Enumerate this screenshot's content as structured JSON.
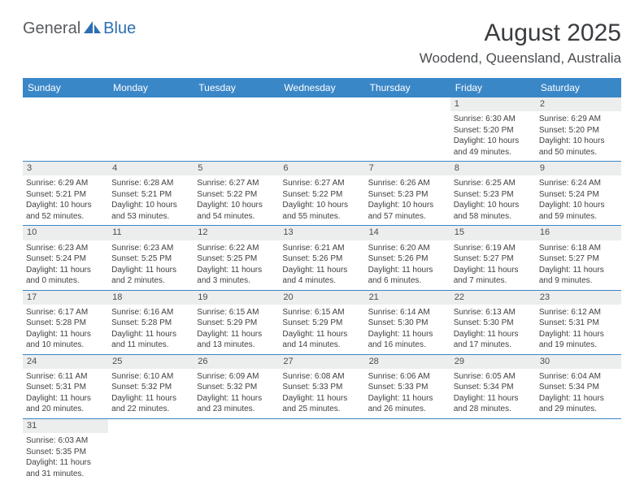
{
  "logo": {
    "general": "General",
    "blue": "Blue",
    "sail_color": "#2c6fb2"
  },
  "header": {
    "month_title": "August 2025",
    "location": "Woodend, Queensland, Australia"
  },
  "weekdays": [
    "Sunday",
    "Monday",
    "Tuesday",
    "Wednesday",
    "Thursday",
    "Friday",
    "Saturday"
  ],
  "colors": {
    "header_bg": "#3a87c8",
    "header_text": "#ffffff",
    "daynum_bg": "#eceded",
    "text": "#3f4143",
    "rule": "#3a87c8"
  },
  "weeks": [
    [
      {
        "empty": true
      },
      {
        "empty": true
      },
      {
        "empty": true
      },
      {
        "empty": true
      },
      {
        "empty": true
      },
      {
        "day": "1",
        "sunrise": "Sunrise: 6:30 AM",
        "sunset": "Sunset: 5:20 PM",
        "daylight": "Daylight: 10 hours and 49 minutes."
      },
      {
        "day": "2",
        "sunrise": "Sunrise: 6:29 AM",
        "sunset": "Sunset: 5:20 PM",
        "daylight": "Daylight: 10 hours and 50 minutes."
      }
    ],
    [
      {
        "day": "3",
        "sunrise": "Sunrise: 6:29 AM",
        "sunset": "Sunset: 5:21 PM",
        "daylight": "Daylight: 10 hours and 52 minutes."
      },
      {
        "day": "4",
        "sunrise": "Sunrise: 6:28 AM",
        "sunset": "Sunset: 5:21 PM",
        "daylight": "Daylight: 10 hours and 53 minutes."
      },
      {
        "day": "5",
        "sunrise": "Sunrise: 6:27 AM",
        "sunset": "Sunset: 5:22 PM",
        "daylight": "Daylight: 10 hours and 54 minutes."
      },
      {
        "day": "6",
        "sunrise": "Sunrise: 6:27 AM",
        "sunset": "Sunset: 5:22 PM",
        "daylight": "Daylight: 10 hours and 55 minutes."
      },
      {
        "day": "7",
        "sunrise": "Sunrise: 6:26 AM",
        "sunset": "Sunset: 5:23 PM",
        "daylight": "Daylight: 10 hours and 57 minutes."
      },
      {
        "day": "8",
        "sunrise": "Sunrise: 6:25 AM",
        "sunset": "Sunset: 5:23 PM",
        "daylight": "Daylight: 10 hours and 58 minutes."
      },
      {
        "day": "9",
        "sunrise": "Sunrise: 6:24 AM",
        "sunset": "Sunset: 5:24 PM",
        "daylight": "Daylight: 10 hours and 59 minutes."
      }
    ],
    [
      {
        "day": "10",
        "sunrise": "Sunrise: 6:23 AM",
        "sunset": "Sunset: 5:24 PM",
        "daylight": "Daylight: 11 hours and 0 minutes."
      },
      {
        "day": "11",
        "sunrise": "Sunrise: 6:23 AM",
        "sunset": "Sunset: 5:25 PM",
        "daylight": "Daylight: 11 hours and 2 minutes."
      },
      {
        "day": "12",
        "sunrise": "Sunrise: 6:22 AM",
        "sunset": "Sunset: 5:25 PM",
        "daylight": "Daylight: 11 hours and 3 minutes."
      },
      {
        "day": "13",
        "sunrise": "Sunrise: 6:21 AM",
        "sunset": "Sunset: 5:26 PM",
        "daylight": "Daylight: 11 hours and 4 minutes."
      },
      {
        "day": "14",
        "sunrise": "Sunrise: 6:20 AM",
        "sunset": "Sunset: 5:26 PM",
        "daylight": "Daylight: 11 hours and 6 minutes."
      },
      {
        "day": "15",
        "sunrise": "Sunrise: 6:19 AM",
        "sunset": "Sunset: 5:27 PM",
        "daylight": "Daylight: 11 hours and 7 minutes."
      },
      {
        "day": "16",
        "sunrise": "Sunrise: 6:18 AM",
        "sunset": "Sunset: 5:27 PM",
        "daylight": "Daylight: 11 hours and 9 minutes."
      }
    ],
    [
      {
        "day": "17",
        "sunrise": "Sunrise: 6:17 AM",
        "sunset": "Sunset: 5:28 PM",
        "daylight": "Daylight: 11 hours and 10 minutes."
      },
      {
        "day": "18",
        "sunrise": "Sunrise: 6:16 AM",
        "sunset": "Sunset: 5:28 PM",
        "daylight": "Daylight: 11 hours and 11 minutes."
      },
      {
        "day": "19",
        "sunrise": "Sunrise: 6:15 AM",
        "sunset": "Sunset: 5:29 PM",
        "daylight": "Daylight: 11 hours and 13 minutes."
      },
      {
        "day": "20",
        "sunrise": "Sunrise: 6:15 AM",
        "sunset": "Sunset: 5:29 PM",
        "daylight": "Daylight: 11 hours and 14 minutes."
      },
      {
        "day": "21",
        "sunrise": "Sunrise: 6:14 AM",
        "sunset": "Sunset: 5:30 PM",
        "daylight": "Daylight: 11 hours and 16 minutes."
      },
      {
        "day": "22",
        "sunrise": "Sunrise: 6:13 AM",
        "sunset": "Sunset: 5:30 PM",
        "daylight": "Daylight: 11 hours and 17 minutes."
      },
      {
        "day": "23",
        "sunrise": "Sunrise: 6:12 AM",
        "sunset": "Sunset: 5:31 PM",
        "daylight": "Daylight: 11 hours and 19 minutes."
      }
    ],
    [
      {
        "day": "24",
        "sunrise": "Sunrise: 6:11 AM",
        "sunset": "Sunset: 5:31 PM",
        "daylight": "Daylight: 11 hours and 20 minutes."
      },
      {
        "day": "25",
        "sunrise": "Sunrise: 6:10 AM",
        "sunset": "Sunset: 5:32 PM",
        "daylight": "Daylight: 11 hours and 22 minutes."
      },
      {
        "day": "26",
        "sunrise": "Sunrise: 6:09 AM",
        "sunset": "Sunset: 5:32 PM",
        "daylight": "Daylight: 11 hours and 23 minutes."
      },
      {
        "day": "27",
        "sunrise": "Sunrise: 6:08 AM",
        "sunset": "Sunset: 5:33 PM",
        "daylight": "Daylight: 11 hours and 25 minutes."
      },
      {
        "day": "28",
        "sunrise": "Sunrise: 6:06 AM",
        "sunset": "Sunset: 5:33 PM",
        "daylight": "Daylight: 11 hours and 26 minutes."
      },
      {
        "day": "29",
        "sunrise": "Sunrise: 6:05 AM",
        "sunset": "Sunset: 5:34 PM",
        "daylight": "Daylight: 11 hours and 28 minutes."
      },
      {
        "day": "30",
        "sunrise": "Sunrise: 6:04 AM",
        "sunset": "Sunset: 5:34 PM",
        "daylight": "Daylight: 11 hours and 29 minutes."
      }
    ],
    [
      {
        "day": "31",
        "sunrise": "Sunrise: 6:03 AM",
        "sunset": "Sunset: 5:35 PM",
        "daylight": "Daylight: 11 hours and 31 minutes."
      },
      {
        "empty": true
      },
      {
        "empty": true
      },
      {
        "empty": true
      },
      {
        "empty": true
      },
      {
        "empty": true
      },
      {
        "empty": true
      }
    ]
  ]
}
